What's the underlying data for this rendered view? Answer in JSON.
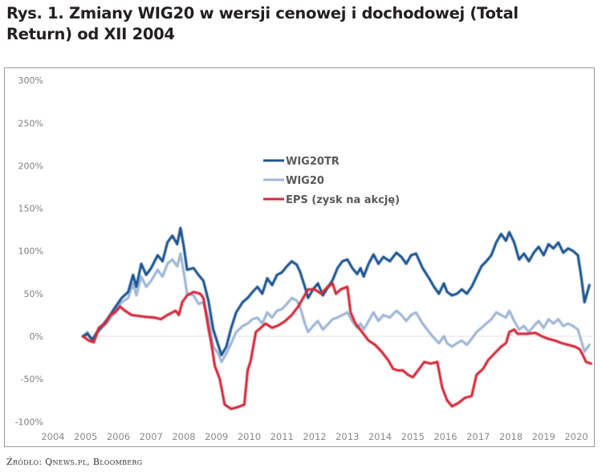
{
  "title": "Rys. 1. Zmiany WIG20 w wersji cenowej i dochodowej (Total Return) od XII 2004",
  "source": "Źródło: Qnews.pl, Bloomberg",
  "chart_data": {
    "type": "line",
    "title": "Rys. 1. Zmiany WIG20 w wersji cenowej i dochodowej (Total Return) od XII 2004",
    "xlabel": "",
    "ylabel": "",
    "xlim": [
      2004,
      2020.5
    ],
    "ylim": [
      -100,
      300
    ],
    "grid": false,
    "legend_position": "upper-center",
    "x_ticks": [
      "2004",
      "2005",
      "2006",
      "2007",
      "2008",
      "2009",
      "2010",
      "2011",
      "2012",
      "2013",
      "2014",
      "2015",
      "2016",
      "2017",
      "2018",
      "2019",
      "2020"
    ],
    "y_ticks": [
      "-100%",
      "-50%",
      "0%",
      "50%",
      "100%",
      "150%",
      "200%",
      "250%",
      "300%"
    ],
    "y_tick_values": [
      -100,
      -50,
      0,
      50,
      100,
      150,
      200,
      250,
      300
    ],
    "series": [
      {
        "name": "WIG20TR",
        "color": "#1f5592",
        "points": [
          [
            2004.92,
            0
          ],
          [
            2005.05,
            3
          ],
          [
            2005.2,
            -4
          ],
          [
            2005.35,
            5
          ],
          [
            2005.5,
            12
          ],
          [
            2005.7,
            22
          ],
          [
            2005.9,
            34
          ],
          [
            2006.1,
            45
          ],
          [
            2006.3,
            52
          ],
          [
            2006.45,
            72
          ],
          [
            2006.55,
            58
          ],
          [
            2006.7,
            85
          ],
          [
            2006.85,
            72
          ],
          [
            2007.0,
            80
          ],
          [
            2007.2,
            95
          ],
          [
            2007.35,
            88
          ],
          [
            2007.5,
            110
          ],
          [
            2007.65,
            118
          ],
          [
            2007.8,
            108
          ],
          [
            2007.9,
            127
          ],
          [
            2008.0,
            105
          ],
          [
            2008.1,
            78
          ],
          [
            2008.3,
            80
          ],
          [
            2008.45,
            72
          ],
          [
            2008.6,
            65
          ],
          [
            2008.75,
            42
          ],
          [
            2008.9,
            8
          ],
          [
            2009.05,
            -10
          ],
          [
            2009.15,
            -22
          ],
          [
            2009.3,
            -12
          ],
          [
            2009.45,
            10
          ],
          [
            2009.6,
            28
          ],
          [
            2009.8,
            40
          ],
          [
            2009.95,
            45
          ],
          [
            2010.1,
            52
          ],
          [
            2010.25,
            58
          ],
          [
            2010.4,
            50
          ],
          [
            2010.55,
            68
          ],
          [
            2010.7,
            60
          ],
          [
            2010.85,
            72
          ],
          [
            2011.0,
            75
          ],
          [
            2011.15,
            82
          ],
          [
            2011.3,
            88
          ],
          [
            2011.45,
            84
          ],
          [
            2011.55,
            76
          ],
          [
            2011.7,
            58
          ],
          [
            2011.8,
            45
          ],
          [
            2011.95,
            55
          ],
          [
            2012.1,
            62
          ],
          [
            2012.25,
            48
          ],
          [
            2012.4,
            57
          ],
          [
            2012.55,
            66
          ],
          [
            2012.7,
            80
          ],
          [
            2012.85,
            88
          ],
          [
            2013.0,
            90
          ],
          [
            2013.15,
            80
          ],
          [
            2013.3,
            73
          ],
          [
            2013.4,
            80
          ],
          [
            2013.5,
            70
          ],
          [
            2013.65,
            85
          ],
          [
            2013.8,
            96
          ],
          [
            2013.95,
            85
          ],
          [
            2014.1,
            93
          ],
          [
            2014.3,
            88
          ],
          [
            2014.5,
            98
          ],
          [
            2014.65,
            93
          ],
          [
            2014.8,
            85
          ],
          [
            2014.95,
            95
          ],
          [
            2015.1,
            97
          ],
          [
            2015.3,
            80
          ],
          [
            2015.5,
            68
          ],
          [
            2015.65,
            58
          ],
          [
            2015.8,
            50
          ],
          [
            2015.95,
            62
          ],
          [
            2016.05,
            52
          ],
          [
            2016.2,
            48
          ],
          [
            2016.35,
            50
          ],
          [
            2016.5,
            55
          ],
          [
            2016.65,
            50
          ],
          [
            2016.8,
            58
          ],
          [
            2016.95,
            70
          ],
          [
            2017.1,
            82
          ],
          [
            2017.25,
            88
          ],
          [
            2017.4,
            95
          ],
          [
            2017.55,
            110
          ],
          [
            2017.7,
            120
          ],
          [
            2017.85,
            112
          ],
          [
            2017.95,
            122
          ],
          [
            2018.1,
            110
          ],
          [
            2018.25,
            90
          ],
          [
            2018.4,
            97
          ],
          [
            2018.55,
            88
          ],
          [
            2018.7,
            98
          ],
          [
            2018.85,
            105
          ],
          [
            2019.0,
            95
          ],
          [
            2019.15,
            108
          ],
          [
            2019.3,
            103
          ],
          [
            2019.45,
            110
          ],
          [
            2019.6,
            98
          ],
          [
            2019.75,
            103
          ],
          [
            2019.9,
            100
          ],
          [
            2020.05,
            95
          ],
          [
            2020.15,
            70
          ],
          [
            2020.25,
            40
          ],
          [
            2020.4,
            60
          ]
        ]
      },
      {
        "name": "WIG20",
        "color": "#9fb6d8",
        "points": [
          [
            2004.92,
            0
          ],
          [
            2005.05,
            5
          ],
          [
            2005.2,
            -5
          ],
          [
            2005.35,
            4
          ],
          [
            2005.5,
            10
          ],
          [
            2005.7,
            18
          ],
          [
            2005.9,
            30
          ],
          [
            2006.1,
            40
          ],
          [
            2006.3,
            45
          ],
          [
            2006.45,
            62
          ],
          [
            2006.55,
            48
          ],
          [
            2006.7,
            70
          ],
          [
            2006.85,
            58
          ],
          [
            2007.0,
            65
          ],
          [
            2007.2,
            78
          ],
          [
            2007.35,
            70
          ],
          [
            2007.5,
            85
          ],
          [
            2007.65,
            90
          ],
          [
            2007.8,
            82
          ],
          [
            2007.9,
            97
          ],
          [
            2008.0,
            75
          ],
          [
            2008.1,
            50
          ],
          [
            2008.3,
            48
          ],
          [
            2008.45,
            38
          ],
          [
            2008.6,
            40
          ],
          [
            2008.75,
            20
          ],
          [
            2008.9,
            -12
          ],
          [
            2009.05,
            -20
          ],
          [
            2009.15,
            -30
          ],
          [
            2009.3,
            -20
          ],
          [
            2009.45,
            -8
          ],
          [
            2009.6,
            5
          ],
          [
            2009.8,
            12
          ],
          [
            2009.95,
            15
          ],
          [
            2010.1,
            20
          ],
          [
            2010.25,
            22
          ],
          [
            2010.4,
            15
          ],
          [
            2010.55,
            28
          ],
          [
            2010.7,
            22
          ],
          [
            2010.85,
            30
          ],
          [
            2011.0,
            32
          ],
          [
            2011.15,
            38
          ],
          [
            2011.3,
            45
          ],
          [
            2011.45,
            42
          ],
          [
            2011.55,
            35
          ],
          [
            2011.7,
            15
          ],
          [
            2011.8,
            5
          ],
          [
            2011.95,
            12
          ],
          [
            2012.1,
            18
          ],
          [
            2012.25,
            8
          ],
          [
            2012.4,
            14
          ],
          [
            2012.55,
            20
          ],
          [
            2012.7,
            22
          ],
          [
            2012.85,
            25
          ],
          [
            2013.0,
            28
          ],
          [
            2013.15,
            18
          ],
          [
            2013.3,
            10
          ],
          [
            2013.4,
            15
          ],
          [
            2013.5,
            8
          ],
          [
            2013.65,
            18
          ],
          [
            2013.8,
            28
          ],
          [
            2013.95,
            18
          ],
          [
            2014.1,
            25
          ],
          [
            2014.3,
            22
          ],
          [
            2014.5,
            30
          ],
          [
            2014.65,
            25
          ],
          [
            2014.8,
            18
          ],
          [
            2014.95,
            25
          ],
          [
            2015.1,
            28
          ],
          [
            2015.3,
            15
          ],
          [
            2015.5,
            5
          ],
          [
            2015.65,
            -2
          ],
          [
            2015.8,
            -8
          ],
          [
            2015.95,
            0
          ],
          [
            2016.05,
            -8
          ],
          [
            2016.2,
            -12
          ],
          [
            2016.35,
            -8
          ],
          [
            2016.5,
            -5
          ],
          [
            2016.65,
            -10
          ],
          [
            2016.8,
            -3
          ],
          [
            2016.95,
            5
          ],
          [
            2017.1,
            10
          ],
          [
            2017.25,
            15
          ],
          [
            2017.4,
            20
          ],
          [
            2017.55,
            28
          ],
          [
            2017.7,
            25
          ],
          [
            2017.85,
            22
          ],
          [
            2017.95,
            30
          ],
          [
            2018.1,
            18
          ],
          [
            2018.25,
            8
          ],
          [
            2018.4,
            12
          ],
          [
            2018.55,
            5
          ],
          [
            2018.7,
            12
          ],
          [
            2018.85,
            18
          ],
          [
            2019.0,
            10
          ],
          [
            2019.15,
            20
          ],
          [
            2019.3,
            15
          ],
          [
            2019.45,
            20
          ],
          [
            2019.6,
            12
          ],
          [
            2019.75,
            15
          ],
          [
            2019.9,
            12
          ],
          [
            2020.05,
            8
          ],
          [
            2020.15,
            -5
          ],
          [
            2020.25,
            -18
          ],
          [
            2020.4,
            -10
          ]
        ]
      },
      {
        "name": "EPS (zysk na akcję)",
        "color": "#d42a3a",
        "points": [
          [
            2004.92,
            0
          ],
          [
            2005.1,
            -5
          ],
          [
            2005.25,
            -7
          ],
          [
            2005.4,
            10
          ],
          [
            2005.6,
            15
          ],
          [
            2005.75,
            25
          ],
          [
            2005.9,
            28
          ],
          [
            2006.05,
            35
          ],
          [
            2006.2,
            30
          ],
          [
            2006.4,
            25
          ],
          [
            2006.8,
            23
          ],
          [
            2007.1,
            22
          ],
          [
            2007.3,
            20
          ],
          [
            2007.5,
            25
          ],
          [
            2007.75,
            30
          ],
          [
            2007.85,
            25
          ],
          [
            2007.95,
            40
          ],
          [
            2008.1,
            48
          ],
          [
            2008.3,
            52
          ],
          [
            2008.5,
            50
          ],
          [
            2008.6,
            45
          ],
          [
            2008.75,
            10
          ],
          [
            2008.85,
            -10
          ],
          [
            2008.95,
            -35
          ],
          [
            2009.1,
            -50
          ],
          [
            2009.25,
            -80
          ],
          [
            2009.45,
            -85
          ],
          [
            2009.65,
            -83
          ],
          [
            2009.85,
            -80
          ],
          [
            2009.95,
            -40
          ],
          [
            2010.05,
            -28
          ],
          [
            2010.2,
            5
          ],
          [
            2010.35,
            10
          ],
          [
            2010.5,
            15
          ],
          [
            2010.7,
            10
          ],
          [
            2010.9,
            13
          ],
          [
            2011.1,
            18
          ],
          [
            2011.3,
            25
          ],
          [
            2011.5,
            35
          ],
          [
            2011.65,
            45
          ],
          [
            2011.8,
            55
          ],
          [
            2012.0,
            55
          ],
          [
            2012.2,
            50
          ],
          [
            2012.4,
            58
          ],
          [
            2012.55,
            62
          ],
          [
            2012.65,
            50
          ],
          [
            2012.8,
            55
          ],
          [
            2013.0,
            58
          ],
          [
            2013.1,
            28
          ],
          [
            2013.25,
            15
          ],
          [
            2013.45,
            5
          ],
          [
            2013.65,
            -5
          ],
          [
            2013.85,
            -10
          ],
          [
            2014.05,
            -18
          ],
          [
            2014.25,
            -28
          ],
          [
            2014.4,
            -38
          ],
          [
            2014.55,
            -40
          ],
          [
            2014.7,
            -40
          ],
          [
            2014.85,
            -45
          ],
          [
            2015.0,
            -48
          ],
          [
            2015.2,
            -38
          ],
          [
            2015.35,
            -30
          ],
          [
            2015.55,
            -32
          ],
          [
            2015.75,
            -30
          ],
          [
            2015.9,
            -60
          ],
          [
            2016.05,
            -75
          ],
          [
            2016.2,
            -82
          ],
          [
            2016.4,
            -78
          ],
          [
            2016.6,
            -72
          ],
          [
            2016.8,
            -70
          ],
          [
            2016.95,
            -45
          ],
          [
            2017.15,
            -38
          ],
          [
            2017.3,
            -28
          ],
          [
            2017.5,
            -20
          ],
          [
            2017.7,
            -12
          ],
          [
            2017.85,
            -8
          ],
          [
            2017.95,
            5
          ],
          [
            2018.1,
            8
          ],
          [
            2018.2,
            3
          ],
          [
            2018.5,
            3
          ],
          [
            2018.75,
            4
          ],
          [
            2018.95,
            0
          ],
          [
            2019.15,
            -3
          ],
          [
            2019.35,
            -5
          ],
          [
            2019.55,
            -8
          ],
          [
            2019.75,
            -10
          ],
          [
            2019.95,
            -12
          ],
          [
            2020.1,
            -15
          ],
          [
            2020.2,
            -22
          ],
          [
            2020.3,
            -30
          ],
          [
            2020.45,
            -32
          ]
        ]
      }
    ]
  }
}
